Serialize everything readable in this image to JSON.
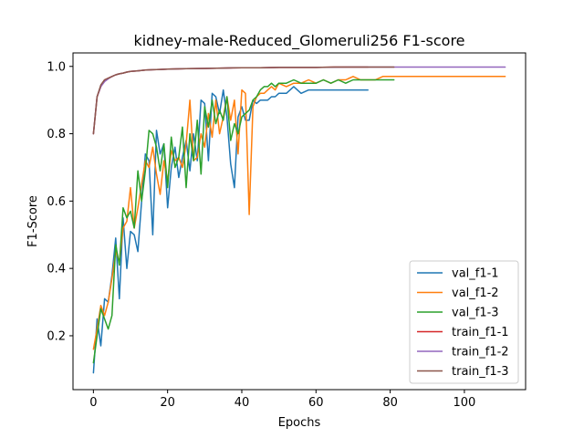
{
  "chart_data": {
    "type": "line",
    "title": "kidney-male-Reduced_Glomeruli256 F1-score",
    "xlabel": "Epochs",
    "ylabel": "F1-Score",
    "xlim": [
      -5.5,
      116.5
    ],
    "ylim": [
      0.04,
      1.04
    ],
    "xticks": [
      0,
      20,
      40,
      60,
      80,
      100
    ],
    "yticks": [
      0.2,
      0.4,
      0.6,
      0.8,
      1.0
    ],
    "ytick_labels": [
      "0.2",
      "0.4",
      "0.6",
      "0.8",
      "1.0"
    ],
    "grid": false,
    "legend_position": "lower-right",
    "series": [
      {
        "name": "val_f1-1",
        "color": "#1f77b4",
        "x": [
          0,
          1,
          2,
          3,
          4,
          5,
          6,
          7,
          8,
          9,
          10,
          11,
          12,
          13,
          14,
          15,
          16,
          17,
          18,
          19,
          20,
          21,
          22,
          23,
          24,
          25,
          26,
          27,
          28,
          29,
          30,
          31,
          32,
          33,
          34,
          35,
          36,
          37,
          38,
          39,
          40,
          41,
          42,
          43,
          44,
          45,
          46,
          47,
          48,
          49,
          50,
          52,
          54,
          56,
          58,
          60,
          62,
          64,
          66,
          68,
          70,
          72,
          74
        ],
        "y": [
          0.09,
          0.25,
          0.17,
          0.31,
          0.3,
          0.38,
          0.49,
          0.31,
          0.55,
          0.4,
          0.51,
          0.5,
          0.45,
          0.6,
          0.74,
          0.72,
          0.5,
          0.81,
          0.74,
          0.77,
          0.58,
          0.7,
          0.76,
          0.67,
          0.73,
          0.78,
          0.69,
          0.8,
          0.72,
          0.9,
          0.89,
          0.72,
          0.92,
          0.91,
          0.86,
          0.93,
          0.85,
          0.71,
          0.64,
          0.85,
          0.88,
          0.84,
          0.84,
          0.9,
          0.89,
          0.9,
          0.9,
          0.9,
          0.91,
          0.91,
          0.92,
          0.92,
          0.94,
          0.92,
          0.93,
          0.93,
          0.93,
          0.93,
          0.93,
          0.93,
          0.93,
          0.93,
          0.93
        ]
      },
      {
        "name": "val_f1-2",
        "color": "#ff7f0e",
        "x": [
          0,
          1,
          2,
          3,
          4,
          5,
          6,
          7,
          8,
          9,
          10,
          11,
          12,
          13,
          14,
          15,
          16,
          17,
          18,
          19,
          20,
          21,
          22,
          23,
          24,
          25,
          26,
          27,
          28,
          29,
          30,
          31,
          32,
          33,
          34,
          35,
          36,
          37,
          38,
          39,
          40,
          41,
          42,
          43,
          44,
          45,
          46,
          47,
          48,
          49,
          50,
          52,
          54,
          56,
          58,
          60,
          62,
          64,
          66,
          68,
          70,
          72,
          74,
          76,
          78,
          80,
          82,
          84,
          86,
          88,
          90,
          95,
          100,
          105,
          111
        ],
        "y": [
          0.16,
          0.22,
          0.29,
          0.26,
          0.3,
          0.37,
          0.45,
          0.42,
          0.52,
          0.54,
          0.64,
          0.52,
          0.58,
          0.65,
          0.72,
          0.7,
          0.76,
          0.68,
          0.62,
          0.72,
          0.66,
          0.75,
          0.72,
          0.73,
          0.7,
          0.77,
          0.9,
          0.72,
          0.73,
          0.8,
          0.76,
          0.86,
          0.79,
          0.9,
          0.8,
          0.85,
          0.91,
          0.84,
          0.9,
          0.74,
          0.93,
          0.92,
          0.56,
          0.88,
          0.91,
          0.92,
          0.92,
          0.93,
          0.94,
          0.93,
          0.95,
          0.94,
          0.95,
          0.95,
          0.96,
          0.95,
          0.96,
          0.95,
          0.96,
          0.96,
          0.97,
          0.96,
          0.96,
          0.96,
          0.97,
          0.97,
          0.97,
          0.97,
          0.97,
          0.97,
          0.97,
          0.97,
          0.97,
          0.97,
          0.97
        ]
      },
      {
        "name": "val_f1-3",
        "color": "#2ca02c",
        "x": [
          0,
          1,
          2,
          3,
          4,
          5,
          6,
          7,
          8,
          9,
          10,
          11,
          12,
          13,
          14,
          15,
          16,
          17,
          18,
          19,
          20,
          21,
          22,
          23,
          24,
          25,
          26,
          27,
          28,
          29,
          30,
          31,
          32,
          33,
          34,
          35,
          36,
          37,
          38,
          39,
          40,
          41,
          42,
          43,
          44,
          45,
          46,
          47,
          48,
          49,
          50,
          52,
          54,
          56,
          58,
          60,
          62,
          64,
          66,
          68,
          70,
          72,
          74,
          76,
          78,
          80,
          81
        ],
        "y": [
          0.12,
          0.2,
          0.28,
          0.25,
          0.22,
          0.26,
          0.47,
          0.41,
          0.58,
          0.55,
          0.57,
          0.52,
          0.69,
          0.6,
          0.69,
          0.81,
          0.8,
          0.76,
          0.69,
          0.77,
          0.64,
          0.79,
          0.7,
          0.73,
          0.82,
          0.64,
          0.8,
          0.72,
          0.84,
          0.68,
          0.88,
          0.82,
          0.9,
          0.83,
          0.87,
          0.84,
          0.91,
          0.78,
          0.83,
          0.8,
          0.85,
          0.86,
          0.87,
          0.9,
          0.91,
          0.93,
          0.94,
          0.94,
          0.95,
          0.94,
          0.95,
          0.95,
          0.96,
          0.95,
          0.95,
          0.95,
          0.96,
          0.95,
          0.96,
          0.95,
          0.96,
          0.96,
          0.96,
          0.96,
          0.96,
          0.96,
          0.96
        ]
      },
      {
        "name": "train_f1-1",
        "color": "#d62728",
        "x": [
          0,
          1,
          2,
          3,
          4,
          5,
          6,
          7,
          8,
          9,
          10,
          12,
          14,
          16,
          18,
          20,
          25,
          30,
          35,
          40,
          45,
          50,
          55,
          60,
          65,
          70,
          74
        ],
        "y": [
          0.8,
          0.91,
          0.94,
          0.96,
          0.965,
          0.97,
          0.975,
          0.978,
          0.98,
          0.983,
          0.985,
          0.987,
          0.989,
          0.99,
          0.991,
          0.992,
          0.993,
          0.994,
          0.995,
          0.996,
          0.996,
          0.997,
          0.997,
          0.997,
          0.998,
          0.998,
          0.998
        ]
      },
      {
        "name": "train_f1-2",
        "color": "#9467bd",
        "x": [
          0,
          1,
          2,
          3,
          4,
          5,
          6,
          7,
          8,
          9,
          10,
          12,
          14,
          16,
          18,
          20,
          25,
          30,
          35,
          40,
          45,
          50,
          60,
          70,
          80,
          90,
          100,
          111
        ],
        "y": [
          0.8,
          0.91,
          0.94,
          0.955,
          0.963,
          0.97,
          0.975,
          0.978,
          0.98,
          0.983,
          0.985,
          0.987,
          0.989,
          0.99,
          0.991,
          0.992,
          0.993,
          0.994,
          0.995,
          0.996,
          0.996,
          0.997,
          0.997,
          0.998,
          0.998,
          0.998,
          0.998,
          0.998
        ]
      },
      {
        "name": "train_f1-3",
        "color": "#8c564b",
        "x": [
          0,
          1,
          2,
          3,
          4,
          5,
          6,
          7,
          8,
          9,
          10,
          12,
          14,
          16,
          18,
          20,
          25,
          30,
          35,
          40,
          45,
          50,
          55,
          60,
          65,
          70,
          75,
          81
        ],
        "y": [
          0.8,
          0.91,
          0.945,
          0.96,
          0.965,
          0.97,
          0.975,
          0.978,
          0.98,
          0.983,
          0.985,
          0.987,
          0.989,
          0.99,
          0.991,
          0.992,
          0.993,
          0.994,
          0.995,
          0.996,
          0.996,
          0.997,
          0.997,
          0.997,
          0.998,
          0.998,
          0.998,
          0.998
        ]
      }
    ]
  }
}
